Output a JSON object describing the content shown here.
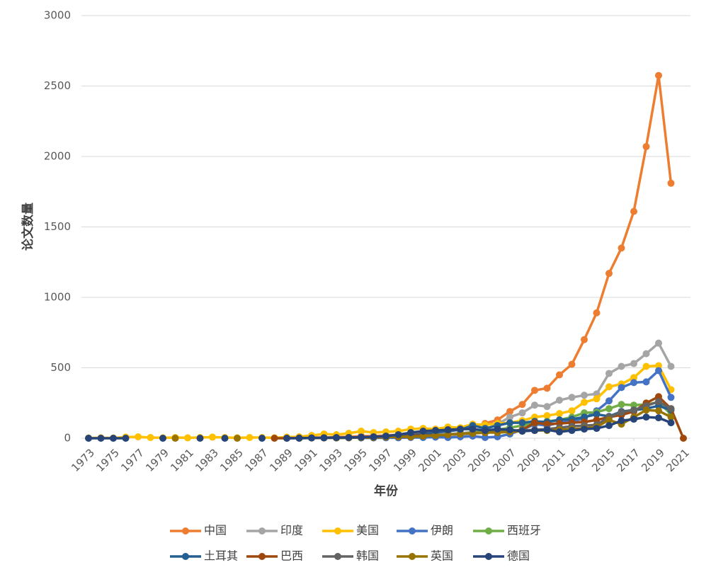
{
  "chart_data": {
    "type": "line",
    "x_label": "年份",
    "y_label": "论文数量",
    "x": [
      1973,
      1974,
      1975,
      1976,
      1977,
      1978,
      1979,
      1980,
      1981,
      1982,
      1983,
      1984,
      1985,
      1986,
      1987,
      1988,
      1989,
      1990,
      1991,
      1992,
      1993,
      1994,
      1995,
      1996,
      1997,
      1998,
      1999,
      2000,
      2001,
      2002,
      2003,
      2004,
      2005,
      2006,
      2007,
      2008,
      2009,
      2010,
      2011,
      2012,
      2013,
      2014,
      2015,
      2016,
      2017,
      2018,
      2019,
      2020,
      2021
    ],
    "xlim": [
      1973,
      2021
    ],
    "xticks": [
      1973,
      1975,
      1977,
      1979,
      1981,
      1983,
      1985,
      1987,
      1989,
      1991,
      1993,
      1995,
      1997,
      1999,
      2001,
      2003,
      2005,
      2007,
      2009,
      2011,
      2013,
      2015,
      2017,
      2019,
      2021
    ],
    "ylim": [
      0,
      3000
    ],
    "yticks": [
      0,
      500,
      1000,
      1500,
      2000,
      2500,
      3000
    ],
    "grid": true,
    "legend": "bottom",
    "series": [
      {
        "name": "中国",
        "color": "#ed7d31",
        "values": [
          null,
          null,
          null,
          null,
          null,
          null,
          null,
          null,
          null,
          null,
          null,
          null,
          null,
          null,
          null,
          null,
          2,
          3,
          5,
          5,
          8,
          10,
          15,
          15,
          20,
          25,
          30,
          40,
          50,
          55,
          65,
          80,
          105,
          130,
          190,
          240,
          340,
          355,
          450,
          525,
          700,
          890,
          1170,
          1350,
          1610,
          2070,
          2575,
          1810,
          null
        ]
      },
      {
        "name": "印度",
        "color": "#a5a5a5",
        "values": [
          null,
          null,
          null,
          null,
          null,
          null,
          null,
          null,
          null,
          null,
          null,
          null,
          null,
          null,
          null,
          null,
          null,
          null,
          null,
          null,
          2,
          3,
          5,
          5,
          10,
          10,
          15,
          20,
          25,
          30,
          35,
          45,
          60,
          100,
          150,
          180,
          235,
          225,
          270,
          290,
          305,
          315,
          460,
          510,
          530,
          600,
          675,
          510,
          null
        ]
      },
      {
        "name": "美国",
        "color": "#ffc000",
        "values": [
          2,
          3,
          2,
          8,
          10,
          5,
          3,
          5,
          3,
          5,
          8,
          5,
          3,
          5,
          5,
          3,
          8,
          10,
          20,
          30,
          25,
          35,
          50,
          40,
          45,
          50,
          65,
          70,
          65,
          80,
          75,
          100,
          95,
          105,
          110,
          125,
          150,
          160,
          175,
          195,
          255,
          280,
          365,
          385,
          430,
          510,
          515,
          345,
          null
        ]
      },
      {
        "name": "伊朗",
        "color": "#4472c4",
        "values": [
          null,
          null,
          null,
          null,
          null,
          null,
          null,
          null,
          null,
          null,
          null,
          null,
          null,
          null,
          null,
          null,
          null,
          null,
          null,
          null,
          null,
          null,
          2,
          2,
          3,
          3,
          5,
          5,
          8,
          5,
          10,
          15,
          5,
          10,
          30,
          60,
          100,
          90,
          110,
          120,
          140,
          195,
          265,
          360,
          395,
          400,
          480,
          290,
          null
        ]
      },
      {
        "name": "西班牙",
        "color": "#70ad47",
        "values": [
          null,
          null,
          null,
          null,
          null,
          null,
          null,
          null,
          null,
          null,
          null,
          null,
          null,
          null,
          null,
          null,
          null,
          null,
          null,
          null,
          null,
          null,
          null,
          null,
          null,
          null,
          10,
          15,
          20,
          25,
          30,
          40,
          50,
          60,
          75,
          90,
          110,
          120,
          130,
          150,
          180,
          185,
          210,
          240,
          235,
          240,
          255,
          170,
          null
        ]
      },
      {
        "name": "土耳其",
        "color": "#255e91",
        "values": [
          null,
          null,
          null,
          null,
          null,
          null,
          null,
          null,
          null,
          null,
          null,
          null,
          null,
          null,
          null,
          null,
          null,
          null,
          null,
          null,
          null,
          null,
          null,
          null,
          10,
          15,
          20,
          30,
          40,
          50,
          60,
          90,
          70,
          90,
          110,
          110,
          120,
          115,
          130,
          135,
          150,
          170,
          155,
          190,
          200,
          210,
          230,
          200,
          null
        ]
      },
      {
        "name": "巴西",
        "color": "#9e480e",
        "values": [
          null,
          null,
          null,
          null,
          null,
          null,
          null,
          null,
          null,
          null,
          null,
          null,
          null,
          null,
          null,
          0,
          0,
          2,
          2,
          3,
          3,
          5,
          5,
          8,
          10,
          10,
          15,
          20,
          20,
          25,
          30,
          35,
          40,
          45,
          50,
          60,
          110,
          100,
          105,
          110,
          115,
          130,
          150,
          165,
          190,
          250,
          295,
          210,
          0
        ]
      },
      {
        "name": "韩国",
        "color": "#636363",
        "values": [
          null,
          null,
          null,
          null,
          null,
          null,
          null,
          null,
          null,
          null,
          null,
          null,
          null,
          null,
          null,
          null,
          null,
          null,
          null,
          null,
          2,
          3,
          5,
          5,
          8,
          10,
          10,
          15,
          20,
          25,
          30,
          35,
          40,
          45,
          50,
          55,
          60,
          65,
          75,
          85,
          90,
          95,
          150,
          185,
          200,
          230,
          260,
          210,
          null
        ]
      },
      {
        "name": "英国",
        "color": "#997300",
        "values": [
          null,
          null,
          null,
          null,
          null,
          null,
          null,
          0,
          null,
          null,
          null,
          null,
          0,
          null,
          null,
          null,
          null,
          0,
          2,
          2,
          3,
          3,
          5,
          5,
          8,
          10,
          10,
          15,
          20,
          25,
          30,
          35,
          40,
          40,
          45,
          50,
          55,
          55,
          60,
          65,
          70,
          80,
          130,
          100,
          150,
          200,
          195,
          150,
          null
        ]
      },
      {
        "name": "德国",
        "color": "#264478",
        "values": [
          0,
          0,
          0,
          0,
          null,
          null,
          0,
          null,
          null,
          0,
          null,
          0,
          null,
          null,
          0,
          null,
          0,
          0,
          2,
          3,
          5,
          5,
          8,
          10,
          15,
          25,
          40,
          50,
          55,
          60,
          65,
          65,
          55,
          65,
          60,
          50,
          55,
          60,
          45,
          55,
          65,
          70,
          90,
          125,
          135,
          150,
          145,
          110,
          null
        ]
      }
    ]
  }
}
